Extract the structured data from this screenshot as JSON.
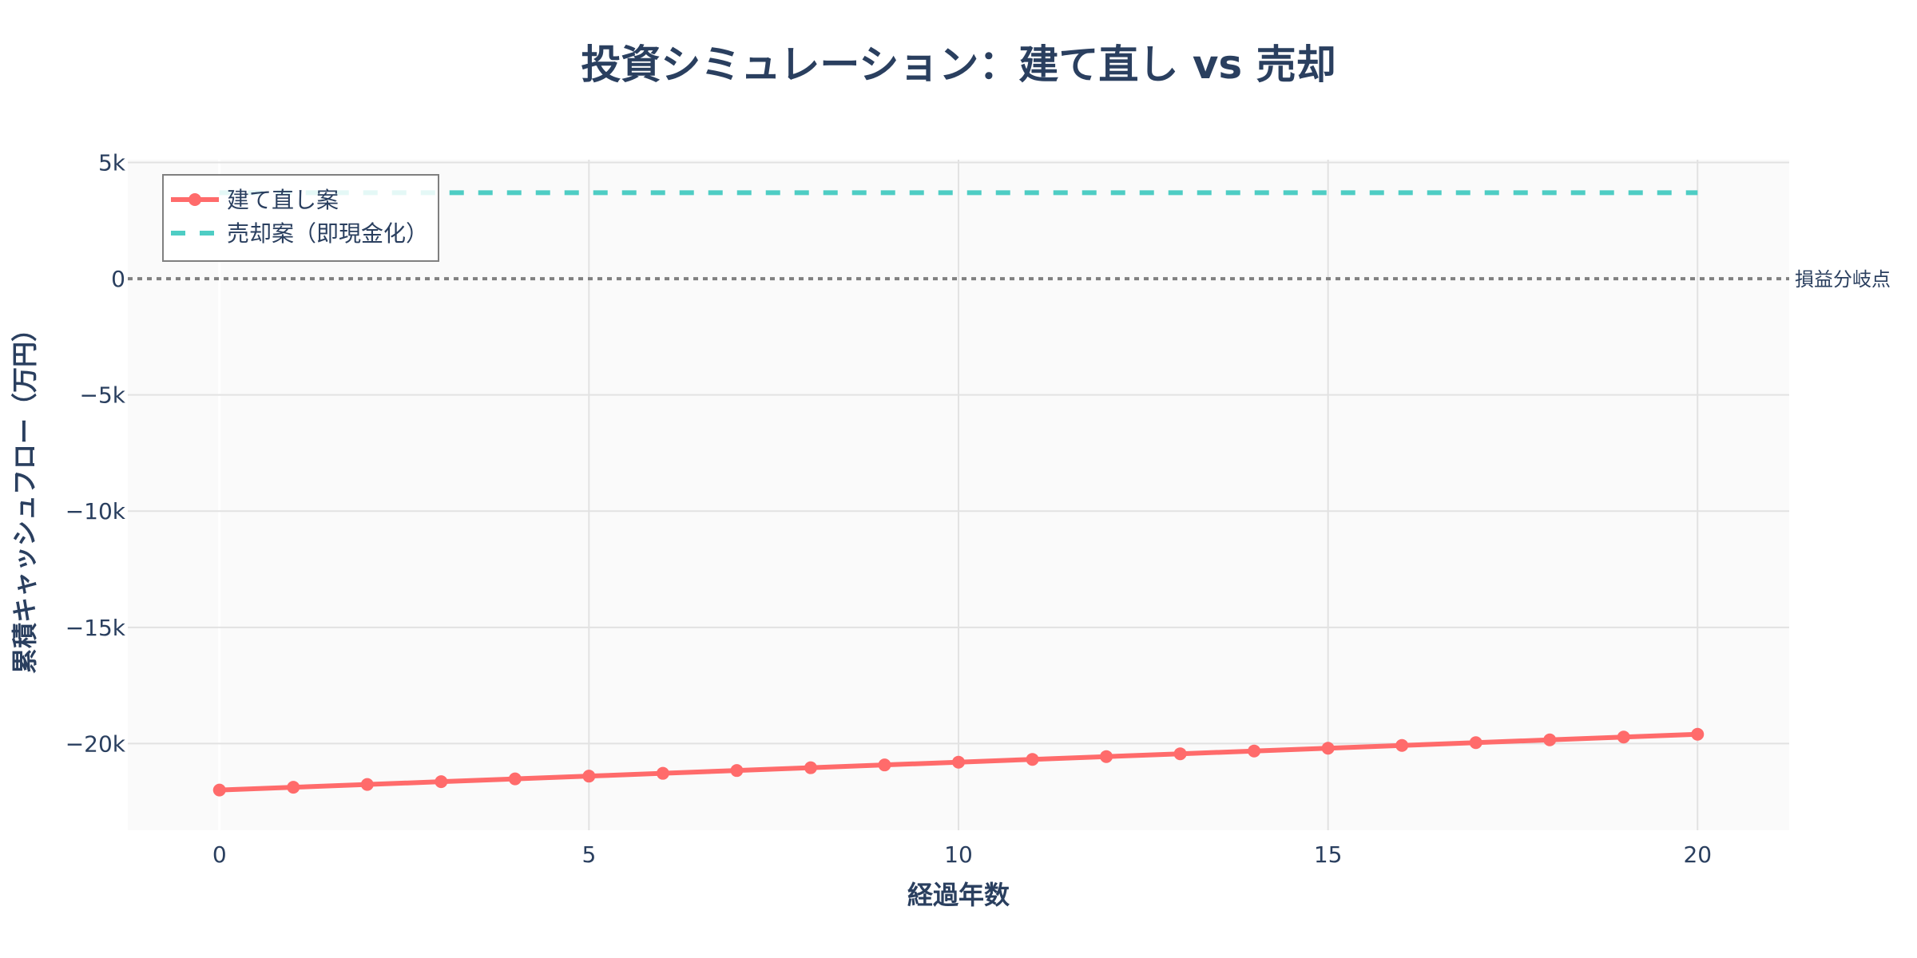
{
  "chart_data": {
    "type": "line",
    "title": "投資シミュレーション：建て直し vs 売却",
    "xlabel": "経過年数",
    "ylabel": "累積キャッシュフロー（万円）",
    "x": [
      0,
      1,
      2,
      3,
      4,
      5,
      6,
      7,
      8,
      9,
      10,
      11,
      12,
      13,
      14,
      15,
      16,
      17,
      18,
      19,
      20
    ],
    "xlim": [
      -1.24,
      21.24
    ],
    "ylim": [
      -23730,
      5120
    ],
    "x_ticks": [
      0,
      5,
      10,
      15,
      20
    ],
    "x_tick_labels": [
      "0",
      "5",
      "10",
      "15",
      "20"
    ],
    "y_ticks": [
      5000,
      0,
      -5000,
      -10000,
      -15000,
      -20000
    ],
    "y_tick_labels": [
      "5k",
      "0",
      "−5k",
      "−10k",
      "−15k",
      "−20k"
    ],
    "grid": true,
    "legend_position": "top-left",
    "series": [
      {
        "name": "建て直し案",
        "color": "#FF6B6B",
        "style": "solid-markers",
        "values": [
          -22000,
          -21880,
          -21760,
          -21640,
          -21520,
          -21400,
          -21280,
          -21160,
          -21040,
          -20920,
          -20800,
          -20680,
          -20560,
          -20440,
          -20320,
          -20200,
          -20080,
          -19960,
          -19840,
          -19720,
          -19600
        ]
      },
      {
        "name": "売却案（即現金化）",
        "color": "#4ECDC4",
        "style": "dashed",
        "values": [
          3700,
          3700,
          3700,
          3700,
          3700,
          3700,
          3700,
          3700,
          3700,
          3700,
          3700,
          3700,
          3700,
          3700,
          3700,
          3700,
          3700,
          3700,
          3700,
          3700,
          3700
        ]
      }
    ],
    "reference_lines": [
      {
        "y": 0,
        "style": "dotted",
        "color": "#808080",
        "label": "損益分岐点"
      }
    ]
  },
  "layout": {
    "plot_bg": "#FAFAFA",
    "grid_color": "#E2E2E2",
    "text_color": "#2a3f5f"
  }
}
